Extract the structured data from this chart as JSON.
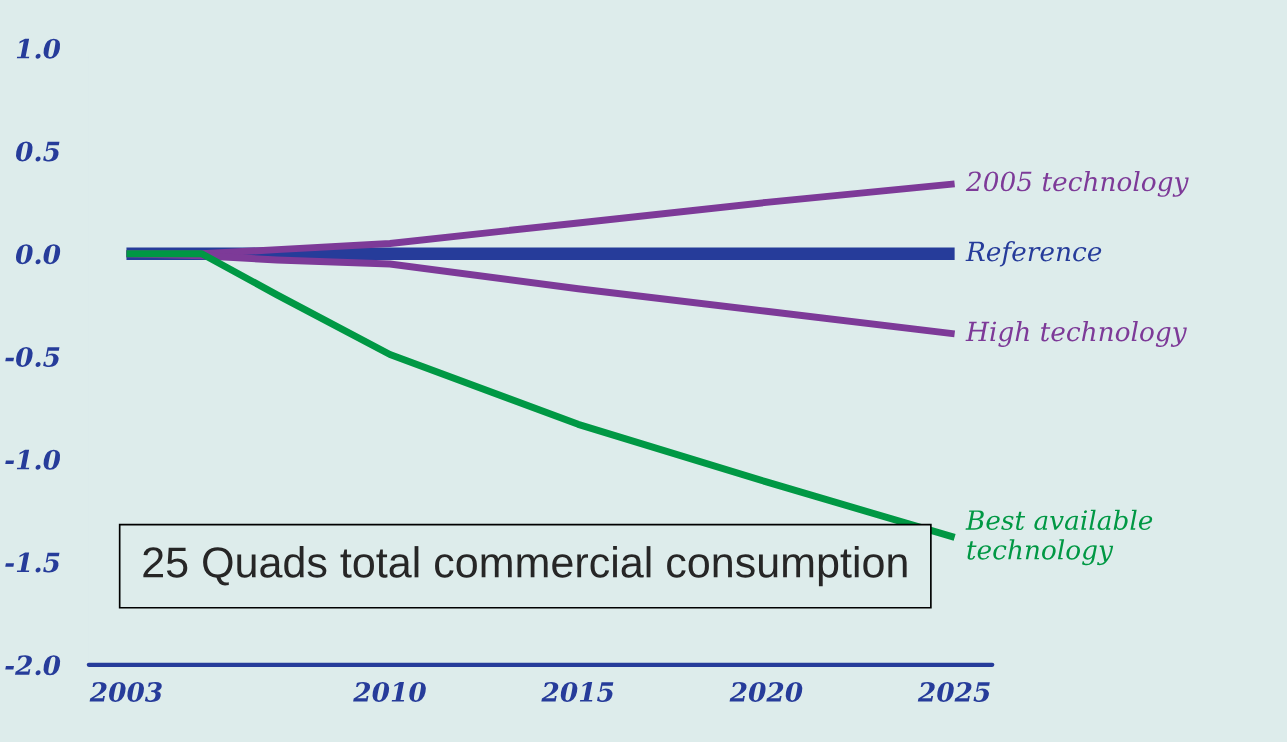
{
  "chart_data": {
    "type": "line",
    "x": [
      2003,
      2005,
      2007,
      2010,
      2015,
      2020,
      2025
    ],
    "series": [
      {
        "name": "2005 technology",
        "color": "#7d3a98",
        "values": [
          0,
          0.0,
          0.02,
          0.05,
          0.15,
          0.25,
          0.34
        ]
      },
      {
        "name": "Reference",
        "color": "#263c9a",
        "values": [
          0,
          0,
          0,
          0,
          0,
          0,
          0
        ]
      },
      {
        "name": "High technology",
        "color": "#7d3a98",
        "values": [
          0,
          -0.01,
          -0.03,
          -0.05,
          -0.17,
          -0.28,
          -0.39
        ]
      },
      {
        "name": "Best available technology",
        "color": "#009844",
        "values": [
          0,
          0,
          -0.2,
          -0.49,
          -0.83,
          -1.11,
          -1.38
        ]
      }
    ],
    "xlim": [
      2002,
      2026
    ],
    "ylim": [
      -2.0,
      1.0
    ],
    "ref_lines": [
      {
        "axis": "y",
        "value": -2.0,
        "color": "#263c9a"
      }
    ],
    "xticks": [
      2003,
      2010,
      2015,
      2020,
      2025
    ],
    "yticks": [
      {
        "value": -2.0,
        "label": "-2.0"
      },
      {
        "value": -1.5,
        "label": "-1.5"
      },
      {
        "value": -1.0,
        "label": "-1.0"
      },
      {
        "value": -0.5,
        "label": "-0.5"
      },
      {
        "value": 0.0,
        "label": "0.0"
      },
      {
        "value": 0.5,
        "label": "0.5"
      },
      {
        "value": 1.0,
        "label": "1.0"
      }
    ],
    "annotations": [
      "25 Quads total commercial consumption"
    ],
    "grid": false,
    "legend": false,
    "marker": "none",
    "line_style": "solid"
  }
}
